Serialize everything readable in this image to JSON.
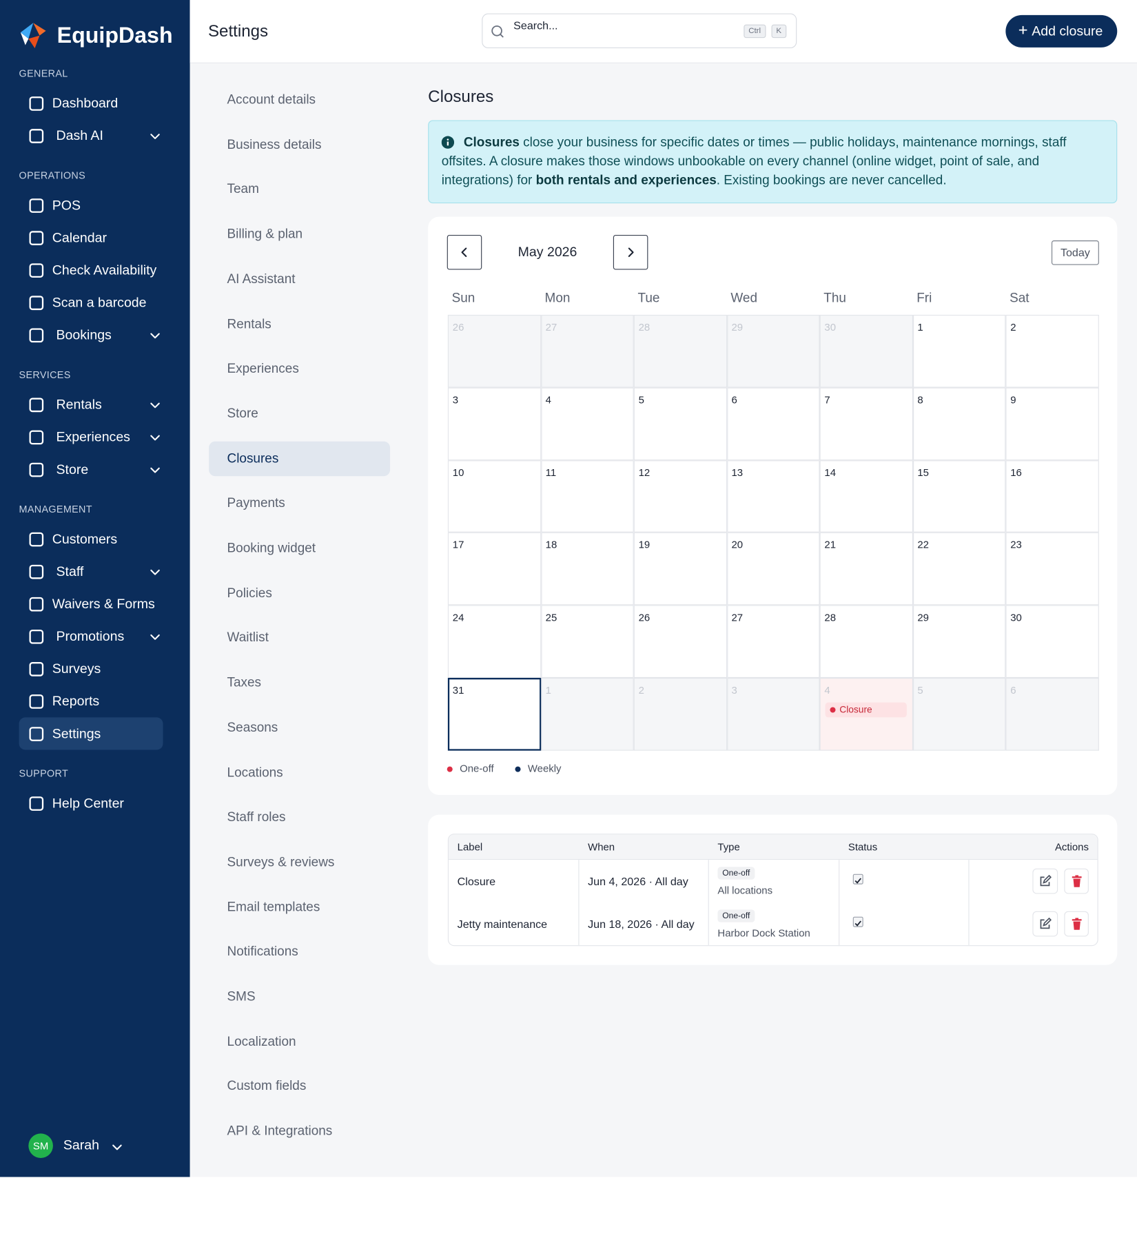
{
  "brand": "EquipDash",
  "header": {
    "title": "Settings",
    "search_placeholder": "Search...",
    "shortcut": [
      "Ctrl",
      "K"
    ],
    "add_button": "Add closure"
  },
  "sidebar": {
    "sections": [
      {
        "title": "GENERAL",
        "items": [
          {
            "label": "Dashboard"
          },
          {
            "label": "Dash AI",
            "expandable": true
          }
        ]
      },
      {
        "title": "OPERATIONS",
        "items": [
          {
            "label": "POS"
          },
          {
            "label": "Calendar"
          },
          {
            "label": "Check Availability"
          },
          {
            "label": "Scan a barcode"
          },
          {
            "label": "Bookings",
            "expandable": true
          }
        ]
      },
      {
        "title": "SERVICES",
        "items": [
          {
            "label": "Rentals",
            "expandable": true
          },
          {
            "label": "Experiences",
            "expandable": true
          },
          {
            "label": "Store",
            "expandable": true
          }
        ]
      },
      {
        "title": "MANAGEMENT",
        "items": [
          {
            "label": "Customers"
          },
          {
            "label": "Staff",
            "expandable": true
          },
          {
            "label": "Waivers & Forms"
          },
          {
            "label": "Promotions",
            "expandable": true
          },
          {
            "label": "Surveys"
          },
          {
            "label": "Reports"
          },
          {
            "label": "Settings",
            "active": true
          }
        ]
      },
      {
        "title": "SUPPORT",
        "items": [
          {
            "label": "Help Center"
          }
        ]
      }
    ],
    "user": {
      "initials": "SM",
      "name": "Sarah"
    }
  },
  "settings_nav": {
    "items": [
      "Account details",
      "Business details",
      "Team",
      "Billing & plan",
      "AI Assistant",
      "Rentals",
      "Experiences",
      "Store",
      "Closures",
      "Payments",
      "Booking widget",
      "Policies",
      "Waitlist",
      "Taxes",
      "Seasons",
      "Locations",
      "Staff roles",
      "Surveys & reviews",
      "Email templates",
      "Notifications",
      "SMS",
      "Localization",
      "Custom fields",
      "API & Integrations"
    ],
    "active": 8
  },
  "closures": {
    "title": "Closures",
    "info": [
      {
        "text": "Closures",
        "bold": true
      },
      {
        "text": " close your business for specific dates or times — public holidays, maintenance mornings, staff offsites. A closure makes those windows unbookable on every channel (online widget, point of sale, and integrations) for "
      },
      {
        "text": "both rentals and experiences",
        "bold": true
      },
      {
        "text": ". Existing bookings are never cancelled."
      }
    ],
    "calendar": {
      "month": "May 2026",
      "today_button": "Today",
      "weekdays": [
        "Sun",
        "Mon",
        "Tue",
        "Wed",
        "Thu",
        "Fri",
        "Sat"
      ],
      "weeks": [
        [
          26,
          27,
          28,
          29,
          30,
          1,
          2
        ],
        [
          3,
          4,
          5,
          6,
          7,
          8,
          9
        ],
        [
          10,
          11,
          12,
          13,
          14,
          15,
          16
        ],
        [
          17,
          18,
          19,
          20,
          21,
          22,
          23
        ],
        [
          24,
          25,
          26,
          27,
          28,
          29,
          30
        ],
        [
          31,
          1,
          2,
          3,
          4,
          5,
          6
        ]
      ],
      "leading_outside": 5,
      "trailing_outside": 6,
      "selected": [
        5,
        0
      ],
      "events": [
        {
          "week": 5,
          "day": 4,
          "label": "Closure",
          "kind": 0
        }
      ],
      "legend": [
        {
          "label": "One-off",
          "color": "#dc2f45"
        },
        {
          "label": "Weekly",
          "color": "#0e2d5a"
        }
      ]
    },
    "table": {
      "columns": [
        "Label",
        "When",
        "Type",
        "Status",
        "Actions"
      ],
      "rows": [
        {
          "label": "Closure",
          "when": "Jun 4, 2026 · All day",
          "type": "One-off",
          "scope": "All locations",
          "status": true
        },
        {
          "label": "Jetty maintenance",
          "when": "Jun 18, 2026 · All day",
          "type": "One-off",
          "scope": "Harbor Dock Station",
          "status": true
        }
      ]
    }
  }
}
